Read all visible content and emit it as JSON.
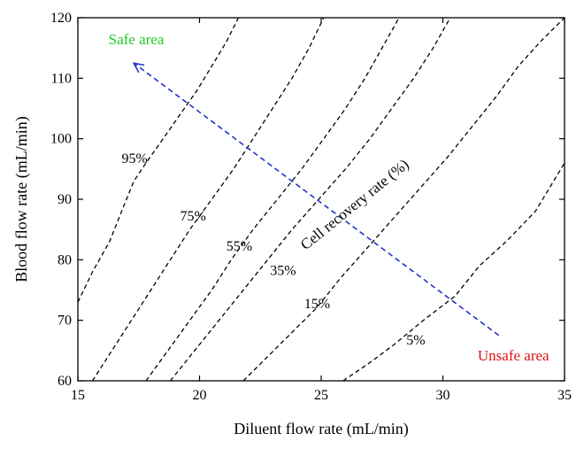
{
  "chart_data": {
    "type": "line",
    "title": "",
    "xlabel": "Diluent flow rate (mL/min)",
    "ylabel": "Blood flow rate (mL/min)",
    "xlim": [
      15,
      35
    ],
    "ylim": [
      60,
      120
    ],
    "xticks": [
      15,
      20,
      25,
      30,
      35
    ],
    "yticks": [
      60,
      70,
      80,
      90,
      100,
      110,
      120
    ],
    "grid": false,
    "series": [
      {
        "label": "95%",
        "label_pos": [
          16.8,
          96
        ],
        "points": [
          [
            15.0,
            73
          ],
          [
            15.6,
            78
          ],
          [
            16.3,
            83
          ],
          [
            16.9,
            89
          ],
          [
            17.3,
            93
          ],
          [
            17.8,
            96
          ],
          [
            18.5,
            100
          ],
          [
            19.2,
            104
          ],
          [
            19.9,
            108
          ],
          [
            20.5,
            112
          ],
          [
            21.1,
            116
          ],
          [
            21.6,
            120
          ]
        ]
      },
      {
        "label": "75%",
        "label_pos": [
          19.2,
          86.5
        ],
        "points": [
          [
            15.6,
            60
          ],
          [
            16.4,
            65
          ],
          [
            17.2,
            70
          ],
          [
            18.0,
            75
          ],
          [
            18.8,
            80
          ],
          [
            19.6,
            85
          ],
          [
            20.5,
            90
          ],
          [
            21.4,
            95
          ],
          [
            22.2,
            100
          ],
          [
            23.0,
            105
          ],
          [
            23.8,
            110
          ],
          [
            24.5,
            115
          ],
          [
            25.1,
            120
          ]
        ]
      },
      {
        "label": "55%",
        "label_pos": [
          21.1,
          81.5
        ],
        "points": [
          [
            17.8,
            60
          ],
          [
            18.7,
            65
          ],
          [
            19.6,
            70
          ],
          [
            20.5,
            75
          ],
          [
            21.3,
            80
          ],
          [
            22.2,
            85
          ],
          [
            23.2,
            90
          ],
          [
            24.2,
            95
          ],
          [
            25.1,
            100
          ],
          [
            26.0,
            105
          ],
          [
            26.8,
            110
          ],
          [
            27.5,
            115
          ],
          [
            28.2,
            120
          ]
        ]
      },
      {
        "label": "35%",
        "label_pos": [
          22.9,
          77.5
        ],
        "points": [
          [
            18.8,
            60
          ],
          [
            19.8,
            65
          ],
          [
            20.8,
            70
          ],
          [
            21.8,
            75
          ],
          [
            22.8,
            80
          ],
          [
            23.8,
            85
          ],
          [
            24.9,
            90
          ],
          [
            26.0,
            95
          ],
          [
            27.0,
            100
          ],
          [
            27.9,
            105
          ],
          [
            28.8,
            110
          ],
          [
            29.6,
            115
          ],
          [
            30.3,
            120
          ]
        ]
      },
      {
        "label": "15%",
        "label_pos": [
          24.3,
          72
        ],
        "points": [
          [
            21.8,
            60
          ],
          [
            22.8,
            64
          ],
          [
            23.8,
            68
          ],
          [
            24.8,
            72
          ],
          [
            25.8,
            77
          ],
          [
            26.9,
            82
          ],
          [
            28.0,
            87
          ],
          [
            29.1,
            92
          ],
          [
            30.2,
            97
          ],
          [
            31.2,
            102
          ],
          [
            32.2,
            107
          ],
          [
            33.1,
            112
          ],
          [
            34.0,
            116
          ],
          [
            35.0,
            120
          ]
        ]
      },
      {
        "label": "5%",
        "label_pos": [
          28.5,
          66
        ],
        "points": [
          [
            25.9,
            60
          ],
          [
            27.0,
            63
          ],
          [
            28.0,
            66
          ],
          [
            29.2,
            70
          ],
          [
            30.5,
            74
          ],
          [
            31.5,
            79
          ],
          [
            32.6,
            83
          ],
          [
            33.8,
            88
          ],
          [
            35.0,
            96
          ]
        ]
      }
    ],
    "annotations": [
      {
        "text": "Safe area",
        "x": 17.4,
        "y": 115.6,
        "color": "#22cc22"
      },
      {
        "text": "Unsafe area",
        "x": 32.9,
        "y": 63.4,
        "color": "#dd1111"
      },
      {
        "text": "Cell recovery rate (%)",
        "x": 26.5,
        "y": 88.5,
        "color": "#000000",
        "rotate": -39
      }
    ],
    "arrow": {
      "from": [
        32.3,
        67.5
      ],
      "to": [
        17.3,
        112.5
      ],
      "color": "#2233cc"
    }
  }
}
